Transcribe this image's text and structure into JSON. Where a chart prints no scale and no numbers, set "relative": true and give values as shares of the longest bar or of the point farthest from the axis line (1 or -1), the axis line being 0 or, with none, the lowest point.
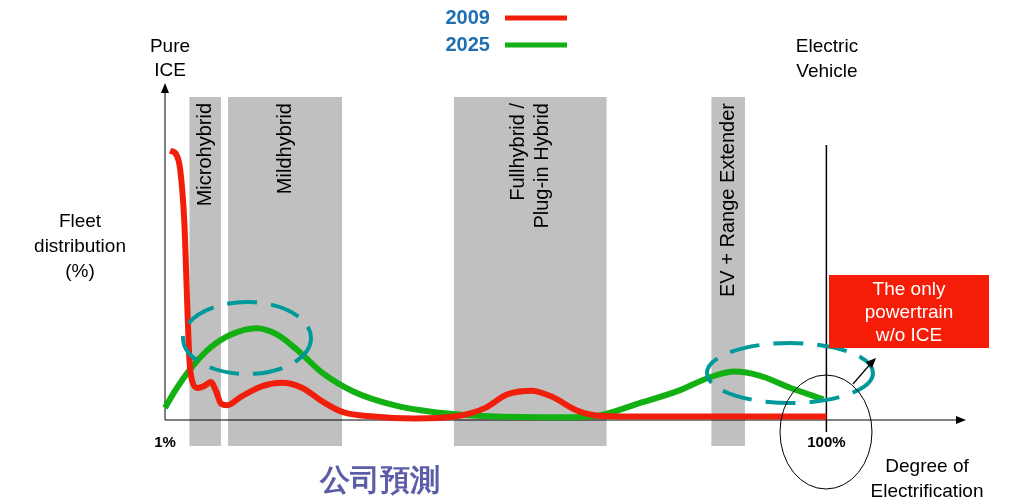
{
  "chart_data": {
    "type": "line",
    "relative": true,
    "xlabel": "Degree of Electrification",
    "ylabel": "Fleet distribution (%)",
    "xlim": [
      1,
      120
    ],
    "xticks": [
      {
        "value": 1,
        "label": "1%"
      },
      {
        "value": 100,
        "label": "100%"
      }
    ],
    "legend": "top",
    "grid": false,
    "marker": "none",
    "line_style": "solid",
    "series": [
      {
        "name": "2009",
        "color": "#f01e0a",
        "x": [
          1.76,
          2.68,
          3.28,
          3.89,
          4.35,
          4.66,
          5.11,
          5.87,
          6.79,
          7.85,
          8.61,
          9.38,
          10.29,
          12.42,
          15.47,
          18.51,
          21.56,
          24.61,
          27.65,
          32.22,
          38.31,
          44.41,
          48.97,
          52.02,
          55.83,
          58.87,
          62.68,
          65.73,
          70.3,
          100
        ],
        "values": [
          1,
          0.987,
          0.929,
          0.736,
          0.415,
          0.222,
          0.141,
          0.119,
          0.125,
          0.141,
          0.109,
          0.061,
          0.055,
          0.087,
          0.125,
          0.138,
          0.119,
          0.068,
          0.029,
          0.013,
          0.006,
          0.013,
          0.045,
          0.093,
          0.109,
          0.087,
          0.035,
          0.016,
          0.013,
          0.013
        ]
      },
      {
        "name": "2025",
        "color": "#12b012",
        "x": [
          1,
          2.52,
          4.81,
          7.85,
          10.9,
          14.71,
          17.75,
          20.8,
          24.61,
          29.18,
          35.27,
          41.36,
          50.5,
          59.64,
          65.73,
          71.82,
          77.91,
          82.48,
          86.29,
          90.1,
          94.66,
          99.54
        ],
        "values": [
          0.045,
          0.109,
          0.19,
          0.27,
          0.318,
          0.341,
          0.318,
          0.26,
          0.174,
          0.106,
          0.055,
          0.029,
          0.013,
          0.01,
          0.016,
          0.061,
          0.109,
          0.158,
          0.18,
          0.164,
          0.119,
          0.077
        ]
      }
    ],
    "bands": [
      {
        "axis": "x",
        "from": 4.66,
        "to": 9.38,
        "label": "Microhybrid",
        "color": "#c0c0c0"
      },
      {
        "axis": "x",
        "from": 10.44,
        "to": 27.5,
        "label": "Mildhybrid",
        "color": "#c0c0c0"
      },
      {
        "axis": "x",
        "from": 44.25,
        "to": 67.1,
        "label": "Fullhybrid / Plug-in Hybrid",
        "color": "#c0c0c0"
      },
      {
        "axis": "x",
        "from": 82.79,
        "to": 87.81,
        "label": "EV + Range Extender",
        "color": "#c0c0c0"
      }
    ],
    "ref_lines": [
      {
        "axis": "x",
        "value": 100,
        "color": "#000000"
      }
    ],
    "annotations": [
      "Pure ICE",
      "Electric Vehicle",
      "The only powertrain w/o ICE",
      "公司預測"
    ]
  }
}
